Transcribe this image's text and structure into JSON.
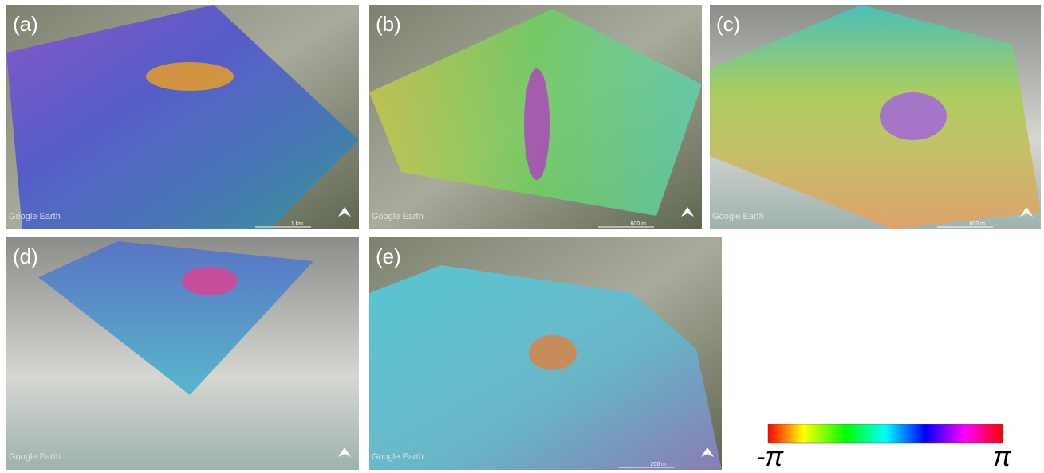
{
  "panels": [
    {
      "label": "(a)",
      "watermark": "Google Earth",
      "scale": "1 km"
    },
    {
      "label": "(b)",
      "watermark": "Google Earth",
      "scale": "600 m"
    },
    {
      "label": "(c)",
      "watermark": "Google Earth",
      "scale": "600 m"
    },
    {
      "label": "(d)",
      "watermark": "Google Earth"
    },
    {
      "label": "(e)",
      "watermark": "Google Earth",
      "scale": "200 m"
    }
  ],
  "colorbar": {
    "min_label": "-π",
    "max_label": "π"
  }
}
